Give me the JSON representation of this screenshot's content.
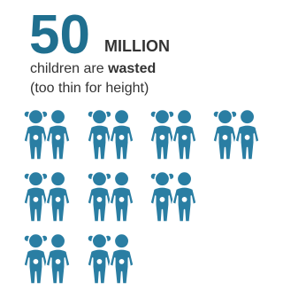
{
  "headline": {
    "number": "50",
    "unit": "MILLION"
  },
  "description": {
    "text": "children are",
    "emphasis": "wasted",
    "note": "(too thin for height)"
  }
}
